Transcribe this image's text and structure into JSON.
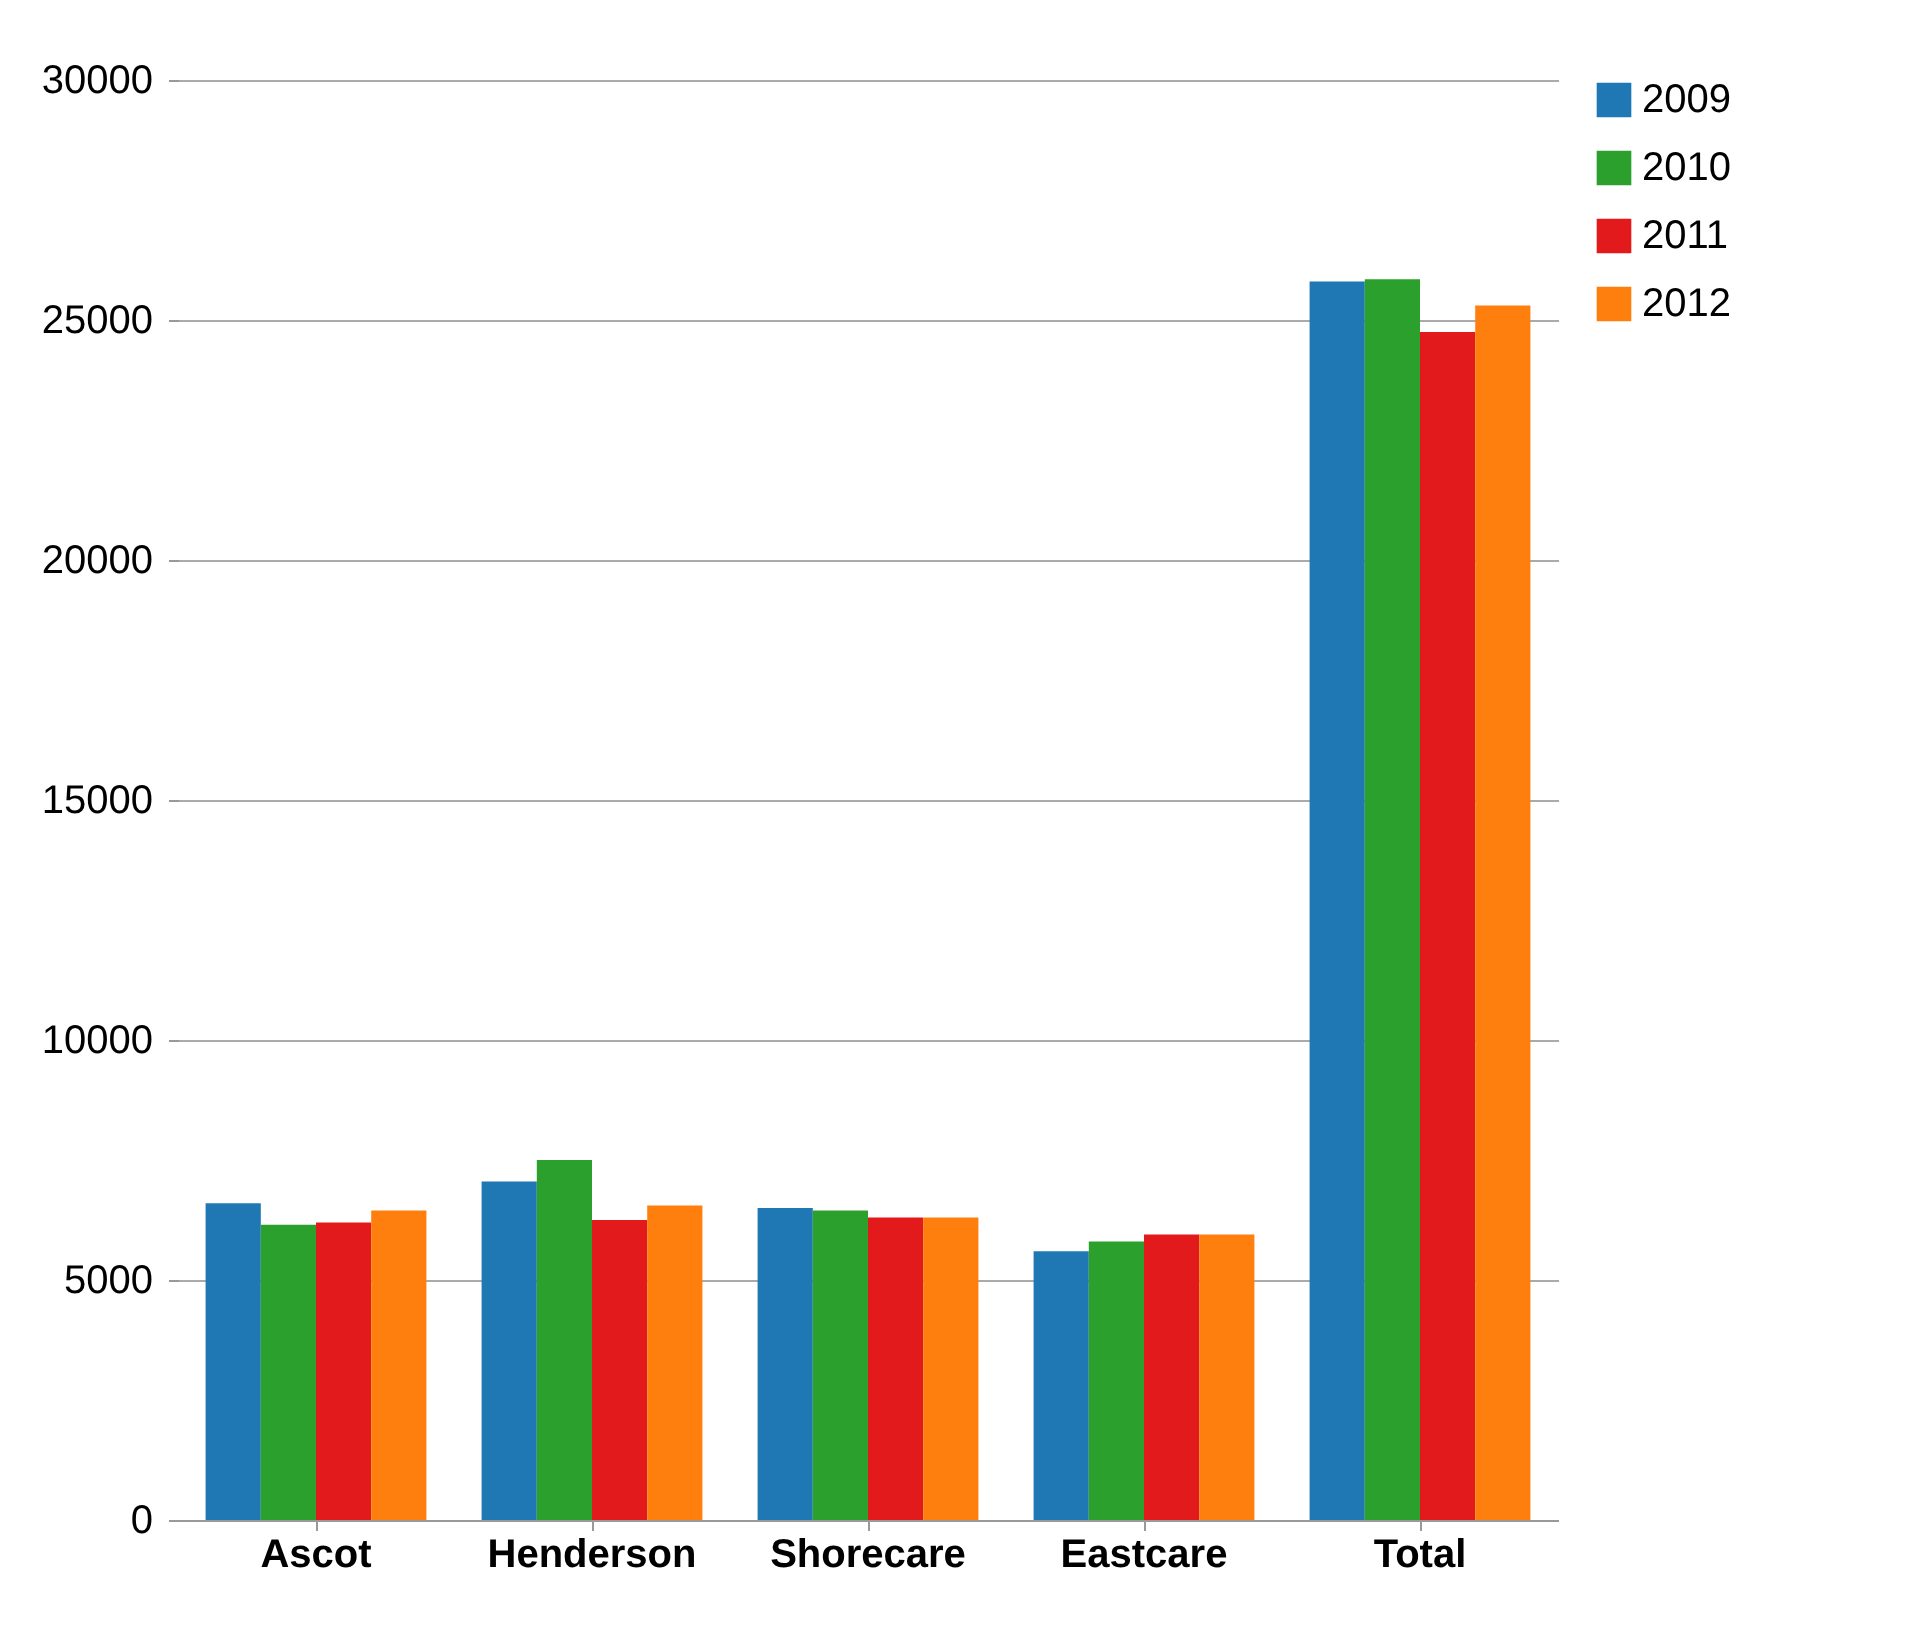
{
  "chart_data": {
    "type": "bar",
    "categories": [
      "Ascot",
      "Henderson",
      "Shorecare",
      "Eastcare",
      "Total"
    ],
    "series": [
      {
        "name": "2009",
        "color": "#1f77b4",
        "values": [
          6600,
          7050,
          6500,
          5600,
          25800
        ]
      },
      {
        "name": "2010",
        "color": "#2ca02c",
        "values": [
          6150,
          7500,
          6450,
          5800,
          25850
        ]
      },
      {
        "name": "2011",
        "color": "#e31a1c",
        "values": [
          6200,
          6250,
          6300,
          5950,
          24750
        ]
      },
      {
        "name": "2012",
        "color": "#ff7f0e",
        "values": [
          6450,
          6550,
          6300,
          5950,
          25300
        ]
      }
    ],
    "ylim": [
      0,
      30000
    ],
    "yticks": [
      0,
      5000,
      10000,
      15000,
      20000,
      25000,
      30000
    ],
    "grid": "y",
    "legend": "right"
  }
}
